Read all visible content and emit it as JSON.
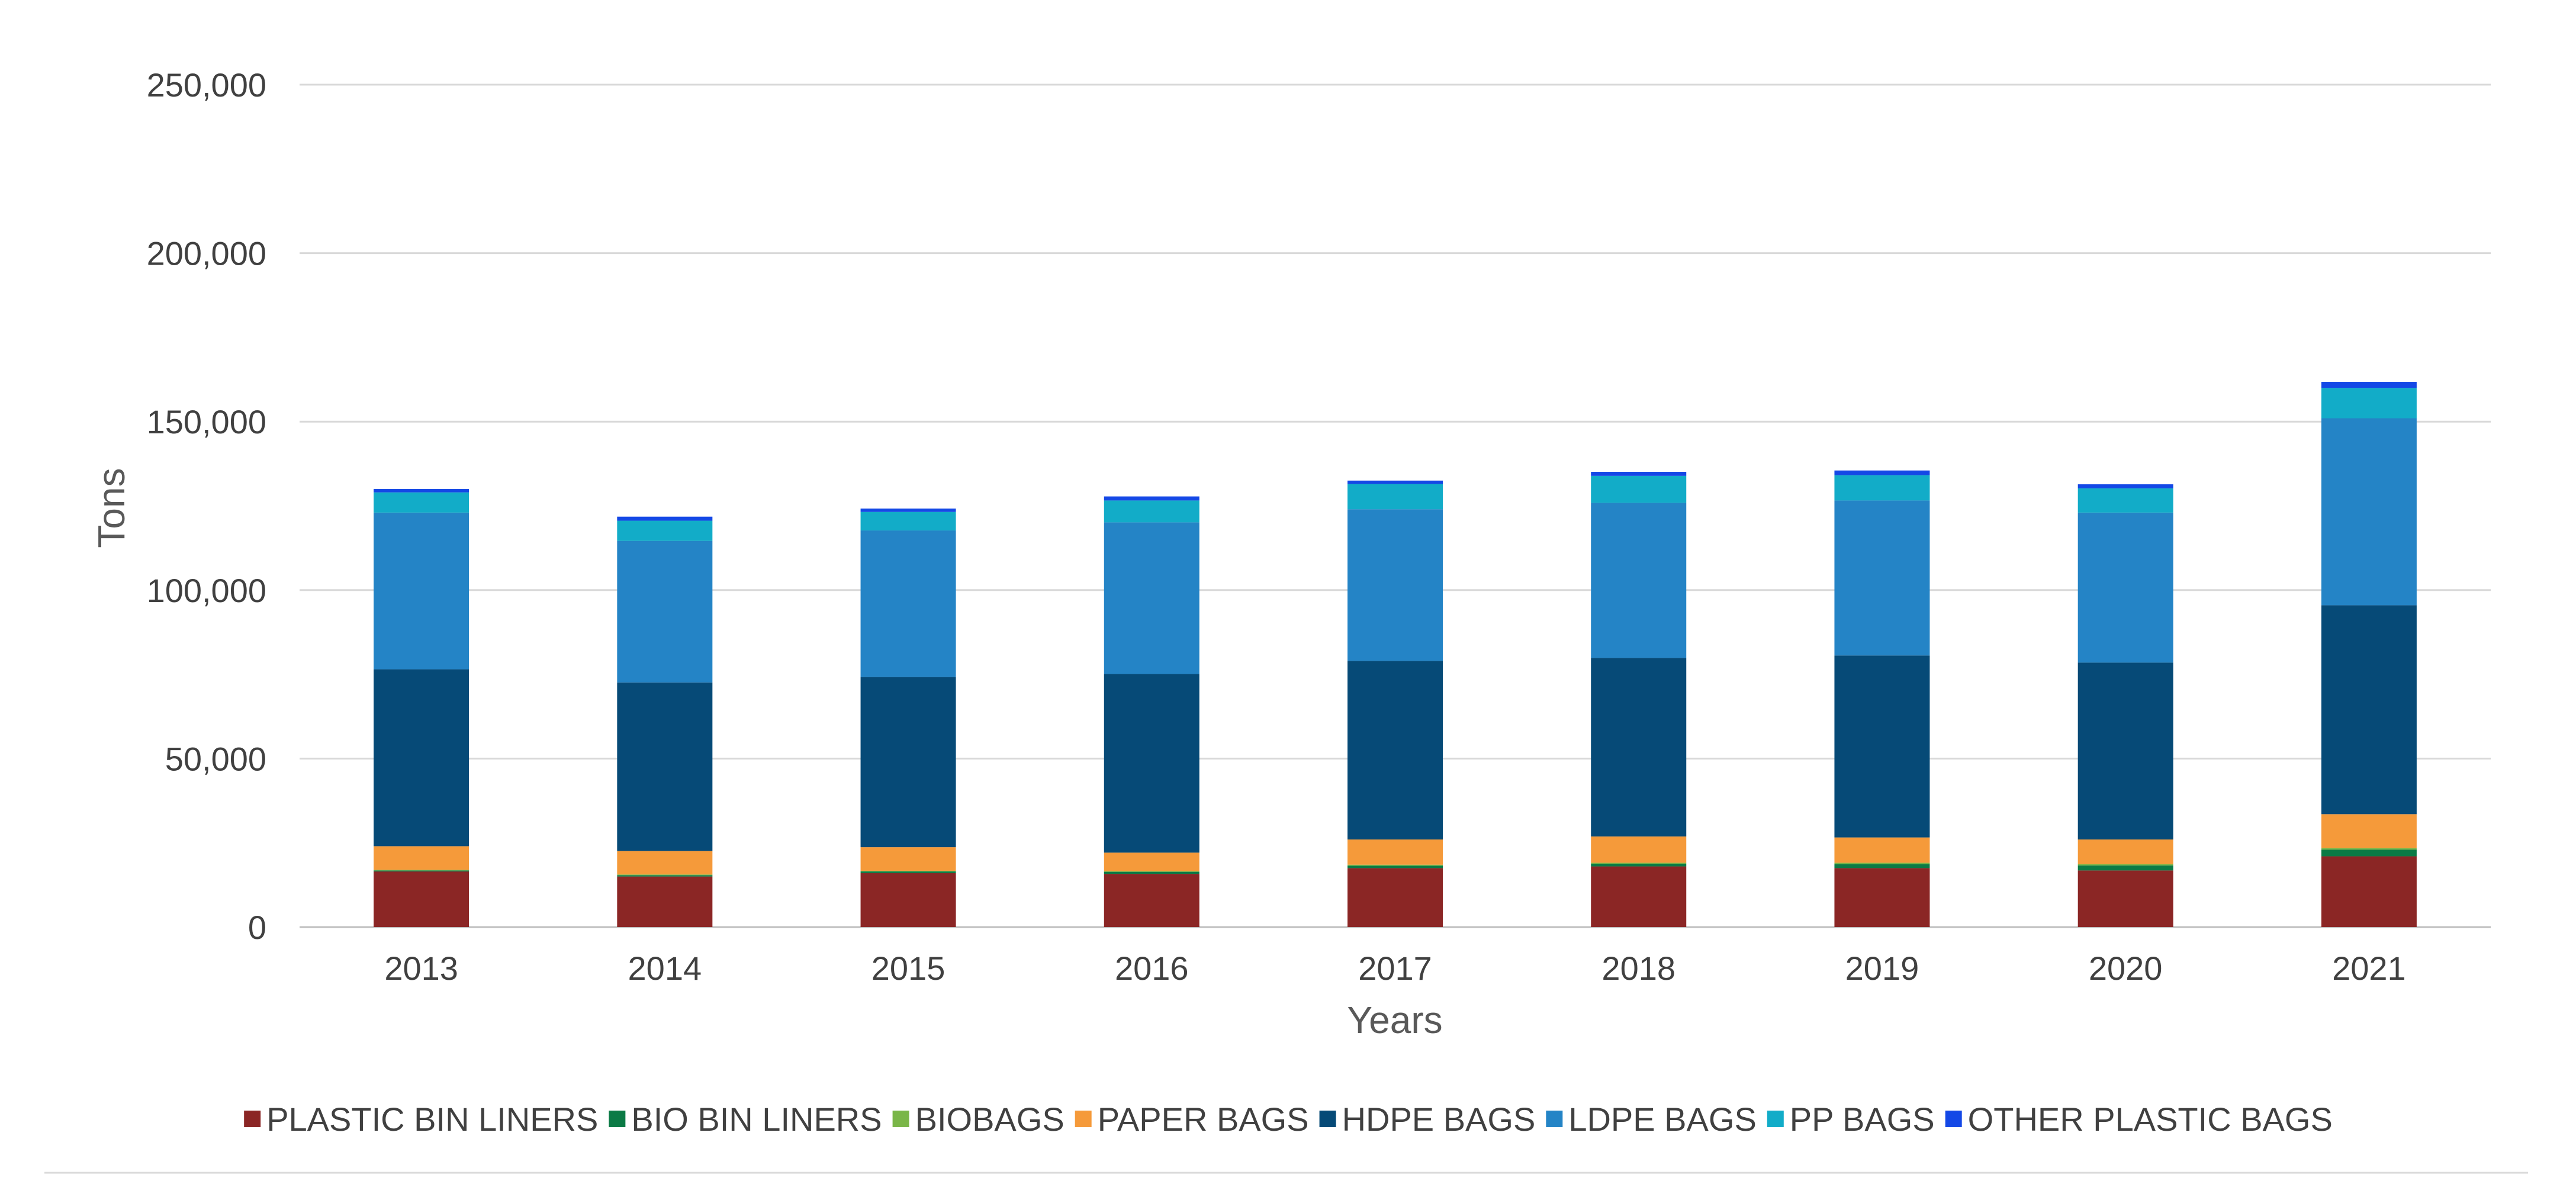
{
  "chart_data": {
    "type": "bar",
    "stacked": true,
    "title": "",
    "xlabel": "Years",
    "ylabel": "Tons",
    "ylim": [
      0,
      250000
    ],
    "yticks": [
      0,
      50000,
      100000,
      150000,
      200000,
      250000
    ],
    "ytick_labels": [
      "0",
      "50,000",
      "100,000",
      "150,000",
      "200,000",
      "250,000"
    ],
    "grid": true,
    "legend_position": "bottom",
    "categories": [
      "2013",
      "2014",
      "2015",
      "2016",
      "2017",
      "2018",
      "2019",
      "2020",
      "2021"
    ],
    "series": [
      {
        "name": "PLASTIC BIN LINERS",
        "color": "#8b2625",
        "values": [
          16500,
          15000,
          16000,
          15800,
          17500,
          18000,
          17500,
          16800,
          21000
        ]
      },
      {
        "name": "BIO BIN LINERS",
        "color": "#0b7a45",
        "values": [
          300,
          400,
          500,
          600,
          700,
          800,
          1200,
          1500,
          2000
        ]
      },
      {
        "name": "BIOBAGS",
        "color": "#7ab648",
        "values": [
          200,
          200,
          200,
          200,
          300,
          300,
          400,
          400,
          500
        ]
      },
      {
        "name": "PAPER BAGS",
        "color": "#f59a3a",
        "values": [
          7000,
          7000,
          7000,
          5500,
          7500,
          7800,
          7500,
          7300,
          10000
        ]
      },
      {
        "name": "HDPE BAGS",
        "color": "#064a77",
        "values": [
          52500,
          50000,
          50500,
          53000,
          53000,
          53000,
          54000,
          52500,
          62000
        ]
      },
      {
        "name": "LDPE BAGS",
        "color": "#2484c6",
        "values": [
          46500,
          42000,
          43500,
          45000,
          45000,
          46000,
          46000,
          44500,
          55500
        ]
      },
      {
        "name": "PP BAGS",
        "color": "#12acc8",
        "values": [
          6000,
          6000,
          5500,
          6500,
          7500,
          8000,
          7500,
          7200,
          9000
        ]
      },
      {
        "name": "OTHER PLASTIC BAGS",
        "color": "#1448e6",
        "values": [
          1000,
          1200,
          1000,
          1200,
          1000,
          1200,
          1400,
          1200,
          1800
        ]
      }
    ]
  }
}
